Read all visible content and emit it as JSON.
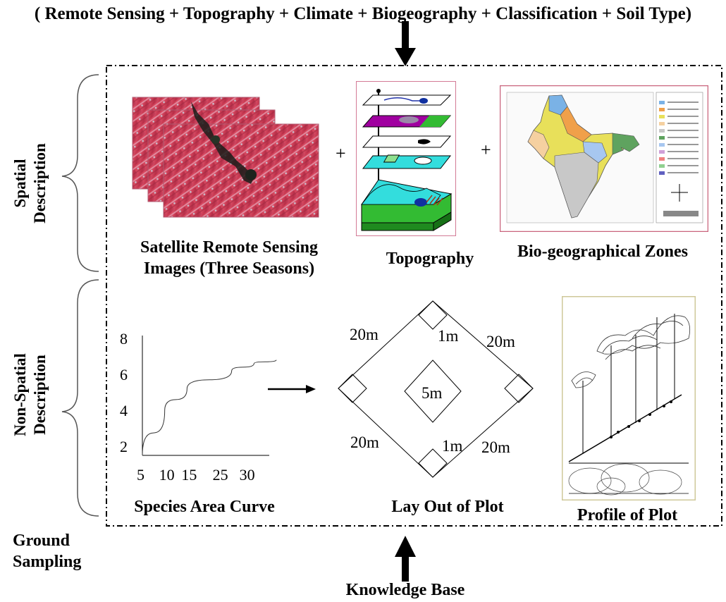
{
  "header": {
    "sources": "( Remote Sensing + Topography + Climate + Biogeography + Classification + Soil Type)"
  },
  "side_labels": {
    "spatial_line1": "Spatial",
    "spatial_line2": "Description",
    "nonspatial_line1": "Non-Spatial",
    "nonspatial_line2": "Description",
    "ground_line1": "Ground",
    "ground_line2": "Sampling"
  },
  "spatial": {
    "satellite_line1": "Satellite Remote Sensing",
    "satellite_line2": "Images (Three Seasons)",
    "topography": "Topography",
    "biogeo": "Bio-geographical Zones",
    "plus": "+"
  },
  "nonspatial": {
    "curve_caption": "Species Area Curve",
    "plot_caption": "Lay Out of Plot",
    "profile_caption": "Profile of Plot"
  },
  "chart_data": {
    "type": "line",
    "title": "",
    "xlabel": "",
    "ylabel": "",
    "x_ticks": [
      "5",
      "10",
      "15",
      "25",
      "30"
    ],
    "y_ticks": [
      "8",
      "6",
      "4",
      "2"
    ],
    "series": [
      {
        "x": [
          5,
          10,
          15,
          25,
          30,
          35
        ],
        "y": [
          1.5,
          4.0,
          5.2,
          6.2,
          6.6,
          6.8
        ]
      }
    ],
    "ylim": [
      1.5,
      8
    ]
  },
  "plot_layout": {
    "side_tl": "20m",
    "side_tr": "20m",
    "side_bl": "20m",
    "side_br": "20m",
    "quadrat_top": "1m",
    "quadrat_bottom": "1m",
    "center": "5m"
  },
  "footer": {
    "knowledge_base": "Knowledge Base"
  }
}
